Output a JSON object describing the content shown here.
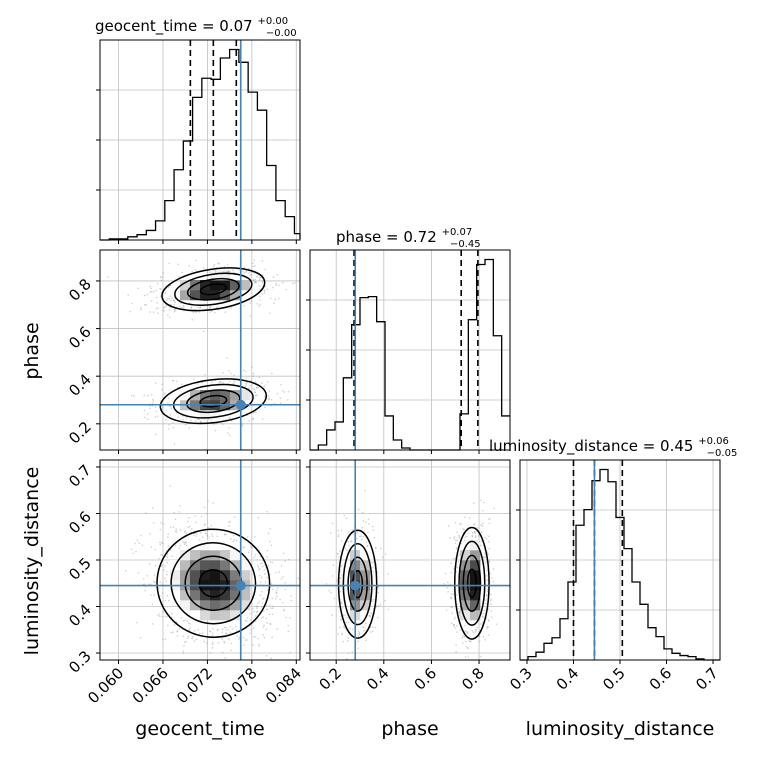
{
  "chart_data": {
    "type": "corner",
    "colors": {
      "truth": "#4682b4",
      "hist": "#000000",
      "grid": "#c0c0c0",
      "scatter": "#9a9a9a"
    },
    "parameters": [
      "geocent_time",
      "phase",
      "luminosity_distance"
    ],
    "truths": {
      "geocent_time": 0.0765,
      "phase": 0.28,
      "luminosity_distance": 0.445
    },
    "ranges": {
      "geocent_time": [
        0.0575,
        0.0845
      ],
      "phase": [
        0.09,
        0.93
      ],
      "luminosity_distance": [
        0.285,
        0.715
      ]
    },
    "ticks": {
      "geocent_time": [
        "0.060",
        "0.066",
        "0.072",
        "0.078",
        "0.084"
      ],
      "phase": [
        "0.2",
        "0.4",
        "0.6",
        "0.8"
      ],
      "luminosity_distance": [
        "0.3",
        "0.4",
        "0.5",
        "0.6",
        "0.7"
      ],
      "luminosity_distance_y": [
        "0.3",
        "0.4",
        "0.5",
        "0.6",
        "0.7"
      ],
      "phase_y": [
        "0.2",
        "0.4",
        "0.6",
        "0.8"
      ]
    },
    "titles": [
      {
        "param": "geocent_time",
        "main": "geocent_time = 0.07",
        "plus": "+0.00",
        "minus": "−0.00"
      },
      {
        "param": "phase",
        "main": "phase = 0.72",
        "plus": "+0.07",
        "minus": "−0.45"
      },
      {
        "param": "luminosity_distance",
        "main": "luminosity_distance = 0.45",
        "plus": "+0.06",
        "minus": "−0.05"
      }
    ],
    "quantiles": {
      "geocent_time": [
        0.0697,
        0.0728,
        0.0759
      ],
      "phase": [
        0.275,
        0.725,
        0.795
      ],
      "luminosity_distance": [
        0.4,
        0.445,
        0.505
      ]
    },
    "hist_1d": {
      "geocent_time": {
        "edges_start": 0.0575,
        "bin_width": 0.00125,
        "counts": [
          0,
          1,
          1,
          3,
          5,
          9,
          18,
          37,
          66,
          93,
          134,
          152,
          151,
          171,
          179,
          167,
          139,
          122,
          70,
          37,
          22,
          6,
          1
        ]
      },
      "phase": {
        "edges_start": 0.09,
        "bin_width": 0.035,
        "counts": [
          0,
          5,
          20,
          28,
          72,
          125,
          152,
          153,
          128,
          34,
          10,
          2,
          0,
          0,
          0,
          0,
          0,
          0,
          36,
          130,
          185,
          190,
          114,
          34
        ]
      },
      "luminosity_distance": {
        "edges_start": 0.285,
        "bin_width": 0.0172,
        "counts": [
          0,
          3,
          7,
          15,
          20,
          37,
          70,
          121,
          135,
          161,
          171,
          160,
          128,
          100,
          70,
          50,
          29,
          21,
          10,
          6,
          4,
          3,
          1,
          0,
          0
        ]
      }
    },
    "hist_2d": {
      "phase_vs_geocent_time": {
        "modes": [
          {
            "x": 0.0728,
            "y": 0.765,
            "sx": 0.0035,
            "sy": 0.042,
            "rho": 0.25,
            "w": 0.55
          },
          {
            "x": 0.0728,
            "y": 0.295,
            "sx": 0.0036,
            "sy": 0.045,
            "rho": 0.2,
            "w": 0.45
          }
        ]
      },
      "luminosity_distance_vs_geocent_time": {
        "modes": [
          {
            "x": 0.0728,
            "y": 0.45,
            "sx": 0.0038,
            "sy": 0.058,
            "rho": -0.15,
            "w": 1.0
          }
        ]
      },
      "luminosity_distance_vs_phase": {
        "modes": [
          {
            "x": 0.29,
            "y": 0.448,
            "sx": 0.04,
            "sy": 0.058,
            "rho": 0.0,
            "w": 0.45
          },
          {
            "x": 0.77,
            "y": 0.45,
            "sx": 0.036,
            "sy": 0.06,
            "rho": 0.0,
            "w": 0.55
          }
        ]
      }
    },
    "contour_levels_sigma": [
      0.5,
      1.0,
      1.5,
      2.0
    ],
    "xlabel": [
      "geocent_time",
      "phase",
      "luminosity_distance"
    ],
    "ylabel": [
      "phase",
      "luminosity_distance"
    ],
    "grid": true,
    "legend": "none"
  }
}
